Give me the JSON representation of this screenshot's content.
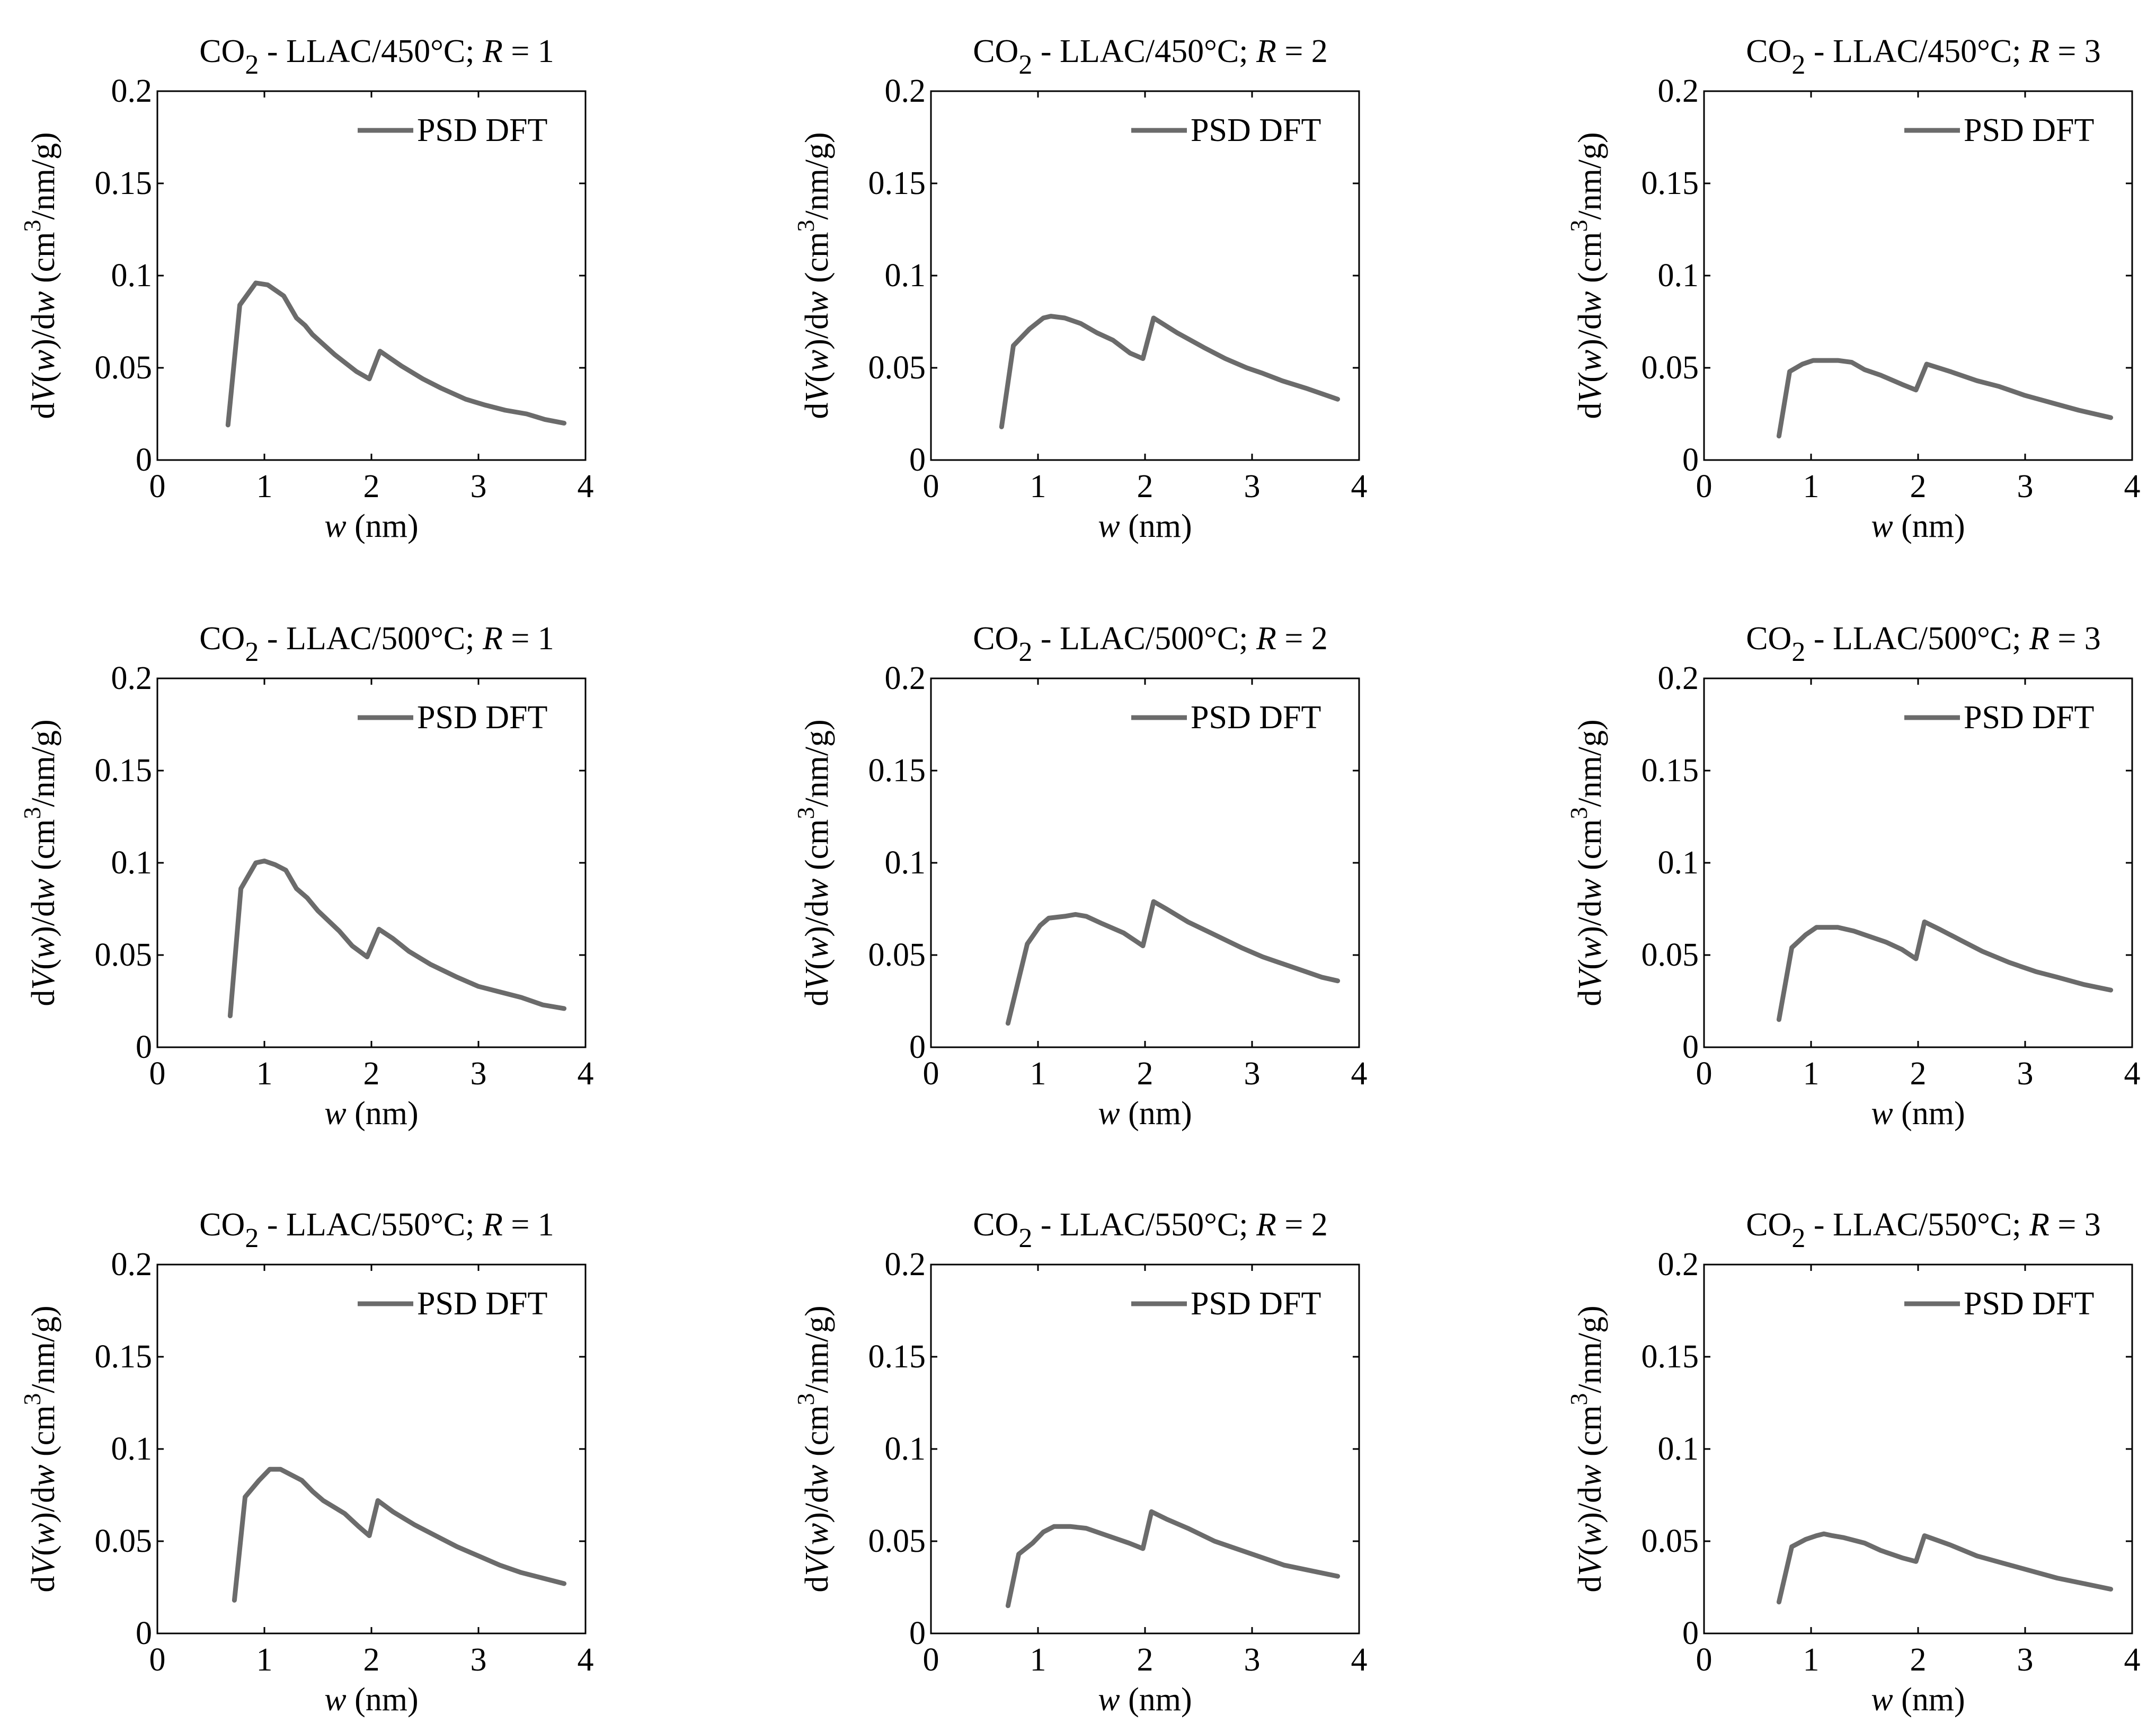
{
  "figure": {
    "line_color": "#6b6b6b",
    "axis_color": "#000000",
    "background_color": "#ffffff",
    "xlabel": {
      "var": "w",
      "unit": "(nm)"
    },
    "ylabel": {
      "prefix": "d",
      "var_v": "V",
      "open": "(",
      "var_w": "w",
      "close": ")/d",
      "var_w2": "w",
      "unit_pre": " (cm",
      "sup": "3",
      "unit_post": "/nm/g)"
    }
  },
  "chart_data": [
    {
      "type": "line",
      "title": {
        "chem": "CO",
        "sub": "2",
        "rest": " - LLAC/450°C; ",
        "var": "R",
        "eq": " = 1"
      },
      "legend": "PSD DFT",
      "xlim": [
        0,
        4
      ],
      "ylim": [
        0,
        0.2
      ],
      "xticks": [
        0,
        1,
        2,
        3,
        4
      ],
      "xtick_labels": [
        "0",
        "1",
        "2",
        "3",
        "4"
      ],
      "yticks": [
        0,
        0.05,
        0.1,
        0.15,
        0.2
      ],
      "ytick_labels": [
        "0",
        "0.05",
        "0.1",
        "0.15",
        "0.2"
      ],
      "series": [
        {
          "name": "PSD DFT",
          "x": [
            0.66,
            0.77,
            0.92,
            1.03,
            1.18,
            1.3,
            1.38,
            1.45,
            1.66,
            1.86,
            1.98,
            2.08,
            2.28,
            2.48,
            2.65,
            2.88,
            3.05,
            3.25,
            3.45,
            3.62,
            3.8
          ],
          "y": [
            0.019,
            0.084,
            0.096,
            0.095,
            0.089,
            0.077,
            0.073,
            0.068,
            0.057,
            0.048,
            0.044,
            0.059,
            0.051,
            0.044,
            0.039,
            0.033,
            0.03,
            0.027,
            0.025,
            0.022,
            0.02
          ]
        }
      ]
    },
    {
      "type": "line",
      "title": {
        "chem": "CO",
        "sub": "2",
        "rest": " - LLAC/450°C; ",
        "var": "R",
        "eq": " = 2"
      },
      "legend": "PSD DFT",
      "xlim": [
        0,
        4
      ],
      "ylim": [
        0,
        0.2
      ],
      "xticks": [
        0,
        1,
        2,
        3,
        4
      ],
      "xtick_labels": [
        "0",
        "1",
        "2",
        "3",
        "4"
      ],
      "yticks": [
        0,
        0.05,
        0.1,
        0.15,
        0.2
      ],
      "ytick_labels": [
        "0",
        "0.05",
        "0.1",
        "0.15",
        "0.2"
      ],
      "series": [
        {
          "name": "PSD DFT",
          "x": [
            0.66,
            0.77,
            0.92,
            1.05,
            1.12,
            1.25,
            1.4,
            1.55,
            1.7,
            1.86,
            1.98,
            2.08,
            2.3,
            2.55,
            2.75,
            2.95,
            3.1,
            3.28,
            3.5,
            3.8
          ],
          "y": [
            0.018,
            0.062,
            0.071,
            0.077,
            0.078,
            0.077,
            0.074,
            0.069,
            0.065,
            0.058,
            0.055,
            0.077,
            0.069,
            0.061,
            0.055,
            0.05,
            0.047,
            0.043,
            0.039,
            0.033
          ]
        }
      ]
    },
    {
      "type": "line",
      "title": {
        "chem": "CO",
        "sub": "2",
        "rest": " - LLAC/450°C; ",
        "var": "R",
        "eq": " = 3"
      },
      "legend": "PSD DFT",
      "xlim": [
        0,
        4
      ],
      "ylim": [
        0,
        0.2
      ],
      "xticks": [
        0,
        1,
        2,
        3,
        4
      ],
      "xtick_labels": [
        "0",
        "1",
        "2",
        "3",
        "4"
      ],
      "yticks": [
        0,
        0.05,
        0.1,
        0.15,
        0.2
      ],
      "ytick_labels": [
        "0",
        "0.05",
        "0.1",
        "0.15",
        "0.2"
      ],
      "series": [
        {
          "name": "PSD DFT",
          "x": [
            0.7,
            0.8,
            0.92,
            1.02,
            1.12,
            1.25,
            1.38,
            1.5,
            1.65,
            1.85,
            1.98,
            2.08,
            2.3,
            2.55,
            2.75,
            3.0,
            3.25,
            3.5,
            3.8
          ],
          "y": [
            0.013,
            0.048,
            0.052,
            0.054,
            0.054,
            0.054,
            0.053,
            0.049,
            0.046,
            0.041,
            0.038,
            0.052,
            0.048,
            0.043,
            0.04,
            0.035,
            0.031,
            0.027,
            0.023
          ]
        }
      ]
    },
    {
      "type": "line",
      "title": {
        "chem": "CO",
        "sub": "2",
        "rest": " - LLAC/500°C; ",
        "var": "R",
        "eq": " = 1"
      },
      "legend": "PSD DFT",
      "xlim": [
        0,
        4
      ],
      "ylim": [
        0,
        0.2
      ],
      "xticks": [
        0,
        1,
        2,
        3,
        4
      ],
      "xtick_labels": [
        "0",
        "1",
        "2",
        "3",
        "4"
      ],
      "yticks": [
        0,
        0.05,
        0.1,
        0.15,
        0.2
      ],
      "ytick_labels": [
        "0",
        "0.05",
        "0.1",
        "0.15",
        "0.2"
      ],
      "series": [
        {
          "name": "PSD DFT",
          "x": [
            0.68,
            0.78,
            0.92,
            1.0,
            1.1,
            1.2,
            1.3,
            1.4,
            1.5,
            1.7,
            1.82,
            1.96,
            2.07,
            2.2,
            2.35,
            2.55,
            2.8,
            3.0,
            3.2,
            3.4,
            3.6,
            3.8
          ],
          "y": [
            0.017,
            0.086,
            0.1,
            0.101,
            0.099,
            0.096,
            0.086,
            0.081,
            0.074,
            0.063,
            0.055,
            0.049,
            0.064,
            0.059,
            0.052,
            0.045,
            0.038,
            0.033,
            0.03,
            0.027,
            0.023,
            0.021
          ]
        }
      ]
    },
    {
      "type": "line",
      "title": {
        "chem": "CO",
        "sub": "2",
        "rest": " - LLAC/500°C; ",
        "var": "R",
        "eq": " = 2"
      },
      "legend": "PSD DFT",
      "xlim": [
        0,
        4
      ],
      "ylim": [
        0,
        0.2
      ],
      "xticks": [
        0,
        1,
        2,
        3,
        4
      ],
      "xtick_labels": [
        "0",
        "1",
        "2",
        "3",
        "4"
      ],
      "yticks": [
        0,
        0.05,
        0.1,
        0.15,
        0.2
      ],
      "ytick_labels": [
        "0",
        "0.05",
        "0.1",
        "0.15",
        "0.2"
      ],
      "series": [
        {
          "name": "PSD DFT",
          "x": [
            0.72,
            0.9,
            1.02,
            1.1,
            1.25,
            1.35,
            1.45,
            1.6,
            1.8,
            1.98,
            2.08,
            2.2,
            2.4,
            2.65,
            2.9,
            3.1,
            3.3,
            3.5,
            3.65,
            3.8
          ],
          "y": [
            0.013,
            0.056,
            0.066,
            0.07,
            0.071,
            0.072,
            0.071,
            0.067,
            0.062,
            0.055,
            0.079,
            0.075,
            0.068,
            0.061,
            0.054,
            0.049,
            0.045,
            0.041,
            0.038,
            0.036
          ]
        }
      ]
    },
    {
      "type": "line",
      "title": {
        "chem": "CO",
        "sub": "2",
        "rest": " - LLAC/500°C; ",
        "var": "R",
        "eq": " = 3"
      },
      "legend": "PSD DFT",
      "xlim": [
        0,
        4
      ],
      "ylim": [
        0,
        0.2
      ],
      "xticks": [
        0,
        1,
        2,
        3,
        4
      ],
      "xtick_labels": [
        "0",
        "1",
        "2",
        "3",
        "4"
      ],
      "yticks": [
        0,
        0.05,
        0.1,
        0.15,
        0.2
      ],
      "ytick_labels": [
        "0",
        "0.05",
        "0.1",
        "0.15",
        "0.2"
      ],
      "series": [
        {
          "name": "PSD DFT",
          "x": [
            0.7,
            0.82,
            0.95,
            1.05,
            1.15,
            1.25,
            1.4,
            1.5,
            1.7,
            1.85,
            1.98,
            2.06,
            2.2,
            2.4,
            2.6,
            2.85,
            3.1,
            3.3,
            3.55,
            3.8
          ],
          "y": [
            0.015,
            0.054,
            0.061,
            0.065,
            0.065,
            0.065,
            0.063,
            0.061,
            0.057,
            0.053,
            0.048,
            0.068,
            0.064,
            0.058,
            0.052,
            0.046,
            0.041,
            0.038,
            0.034,
            0.031
          ]
        }
      ]
    },
    {
      "type": "line",
      "title": {
        "chem": "CO",
        "sub": "2",
        "rest": " - LLAC/550°C; ",
        "var": "R",
        "eq": " = 1"
      },
      "legend": "PSD DFT",
      "xlim": [
        0,
        4
      ],
      "ylim": [
        0,
        0.2
      ],
      "xticks": [
        0,
        1,
        2,
        3,
        4
      ],
      "xtick_labels": [
        "0",
        "1",
        "2",
        "3",
        "4"
      ],
      "yticks": [
        0,
        0.05,
        0.1,
        0.15,
        0.2
      ],
      "ytick_labels": [
        "0",
        "0.05",
        "0.1",
        "0.15",
        "0.2"
      ],
      "series": [
        {
          "name": "PSD DFT",
          "x": [
            0.72,
            0.82,
            0.95,
            1.05,
            1.15,
            1.25,
            1.35,
            1.45,
            1.55,
            1.75,
            1.88,
            1.98,
            2.06,
            2.2,
            2.4,
            2.6,
            2.8,
            3.0,
            3.2,
            3.4,
            3.6,
            3.8
          ],
          "y": [
            0.018,
            0.074,
            0.083,
            0.089,
            0.089,
            0.086,
            0.083,
            0.077,
            0.072,
            0.065,
            0.058,
            0.053,
            0.072,
            0.066,
            0.059,
            0.053,
            0.047,
            0.042,
            0.037,
            0.033,
            0.03,
            0.027
          ]
        }
      ]
    },
    {
      "type": "line",
      "title": {
        "chem": "CO",
        "sub": "2",
        "rest": " - LLAC/550°C; ",
        "var": "R",
        "eq": " = 2"
      },
      "legend": "PSD DFT",
      "xlim": [
        0,
        4
      ],
      "ylim": [
        0,
        0.2
      ],
      "xticks": [
        0,
        1,
        2,
        3,
        4
      ],
      "xtick_labels": [
        "0",
        "1",
        "2",
        "3",
        "4"
      ],
      "yticks": [
        0,
        0.05,
        0.1,
        0.15,
        0.2
      ],
      "ytick_labels": [
        "0",
        "0.05",
        "0.1",
        "0.15",
        "0.2"
      ],
      "series": [
        {
          "name": "PSD DFT",
          "x": [
            0.72,
            0.82,
            0.95,
            1.05,
            1.15,
            1.3,
            1.45,
            1.65,
            1.85,
            1.98,
            2.06,
            2.2,
            2.4,
            2.65,
            2.9,
            3.1,
            3.3,
            3.55,
            3.8
          ],
          "y": [
            0.015,
            0.043,
            0.049,
            0.055,
            0.058,
            0.058,
            0.057,
            0.053,
            0.049,
            0.046,
            0.066,
            0.062,
            0.057,
            0.05,
            0.045,
            0.041,
            0.037,
            0.034,
            0.031
          ]
        }
      ]
    },
    {
      "type": "line",
      "title": {
        "chem": "CO",
        "sub": "2",
        "rest": " - LLAC/550°C; ",
        "var": "R",
        "eq": " = 3"
      },
      "legend": "PSD DFT",
      "xlim": [
        0,
        4
      ],
      "ylim": [
        0,
        0.2
      ],
      "xticks": [
        0,
        1,
        2,
        3,
        4
      ],
      "xtick_labels": [
        "0",
        "1",
        "2",
        "3",
        "4"
      ],
      "yticks": [
        0,
        0.05,
        0.1,
        0.15,
        0.2
      ],
      "ytick_labels": [
        "0",
        "0.05",
        "0.1",
        "0.15",
        "0.2"
      ],
      "series": [
        {
          "name": "PSD DFT",
          "x": [
            0.7,
            0.82,
            0.95,
            1.05,
            1.12,
            1.2,
            1.3,
            1.5,
            1.65,
            1.85,
            1.98,
            2.06,
            2.3,
            2.55,
            2.8,
            3.05,
            3.3,
            3.55,
            3.8
          ],
          "y": [
            0.017,
            0.047,
            0.051,
            0.053,
            0.054,
            0.053,
            0.052,
            0.049,
            0.045,
            0.041,
            0.039,
            0.053,
            0.048,
            0.042,
            0.038,
            0.034,
            0.03,
            0.027,
            0.024
          ]
        }
      ]
    }
  ]
}
